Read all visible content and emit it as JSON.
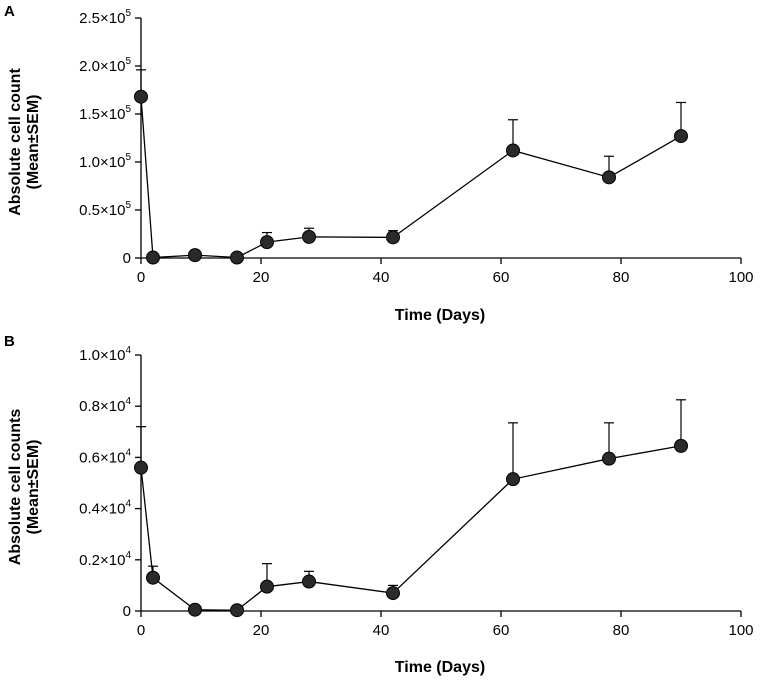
{
  "chart_data": [
    {
      "type": "line",
      "panel_label": "A",
      "xlabel": "Time (Days)",
      "ylabel_line1": "Absolute cell count",
      "ylabel_line2": "(Mean±SEM)",
      "xlim": [
        0,
        100
      ],
      "ylim": [
        0,
        250000
      ],
      "x_ticks": [
        0,
        20,
        40,
        60,
        80,
        100
      ],
      "y_ticks": [
        {
          "value": 0,
          "mant": "0",
          "exp": ""
        },
        {
          "value": 50000,
          "mant": "0.5×10",
          "exp": "5"
        },
        {
          "value": 100000,
          "mant": "1.0×10",
          "exp": "5"
        },
        {
          "value": 150000,
          "mant": "1.5×10",
          "exp": "5"
        },
        {
          "value": 200000,
          "mant": "2.0×10",
          "exp": "5"
        },
        {
          "value": 250000,
          "mant": "2.5×10",
          "exp": "5"
        }
      ],
      "x": [
        0,
        2,
        9,
        16,
        21,
        28,
        42,
        62,
        78,
        90
      ],
      "y": [
        168000,
        500,
        3000,
        500,
        16500,
        22000,
        21500,
        112000,
        84000,
        127000
      ],
      "err": [
        28000,
        0,
        0,
        0,
        10000,
        9000,
        7000,
        32000,
        22000,
        35000
      ]
    },
    {
      "type": "line",
      "panel_label": "B",
      "xlabel": "Time (Days)",
      "ylabel_line1": "Absolute cell counts",
      "ylabel_line2": "(Mean±SEM)",
      "xlim": [
        0,
        100
      ],
      "ylim": [
        0,
        10000
      ],
      "x_ticks": [
        0,
        20,
        40,
        60,
        80,
        100
      ],
      "y_ticks": [
        {
          "value": 0,
          "mant": "0",
          "exp": ""
        },
        {
          "value": 2000,
          "mant": "0.2×10",
          "exp": "4"
        },
        {
          "value": 4000,
          "mant": "0.4×10",
          "exp": "4"
        },
        {
          "value": 6000,
          "mant": "0.6×10",
          "exp": "4"
        },
        {
          "value": 8000,
          "mant": "0.8×10",
          "exp": "4"
        },
        {
          "value": 10000,
          "mant": "1.0×10",
          "exp": "4"
        }
      ],
      "x": [
        0,
        2,
        9,
        16,
        21,
        28,
        42,
        62,
        78,
        90
      ],
      "y": [
        5600,
        1300,
        50,
        30,
        950,
        1150,
        700,
        5150,
        5950,
        6450
      ],
      "err": [
        1600,
        450,
        0,
        0,
        900,
        400,
        300,
        2200,
        1400,
        1800
      ]
    }
  ]
}
